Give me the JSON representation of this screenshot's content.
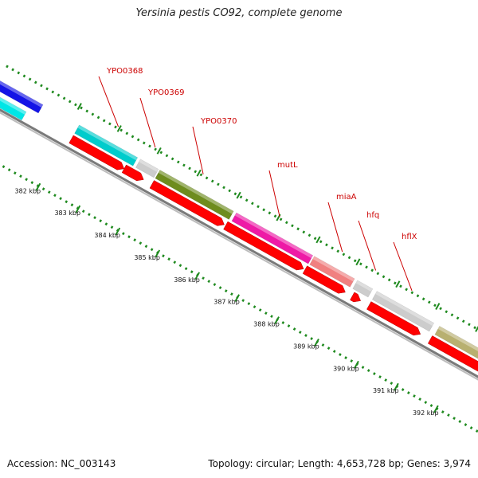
{
  "title": "Yersinia pestis CO92, complete genome",
  "accession_label": "Accession: NC_003143",
  "stats_label": "Topology: circular; Length: 4,653,728 bp; Genes: 3,974",
  "colors": {
    "label_red": "#cc0000",
    "dots_green": "#1f8a1f",
    "backbone": "#7a7a7a",
    "cds": "#ff0000"
  },
  "kbp_ticks": [
    "382 kbp",
    "383 kbp",
    "384 kbp",
    "385 kbp",
    "386 kbp",
    "387 kbp",
    "388 kbp",
    "389 kbp",
    "390 kbp",
    "391 kbp",
    "392 kbp"
  ],
  "gene_labels": [
    "YPO0368",
    "YPO0369",
    "YPO0370",
    "mutL",
    "miaA",
    "hfq",
    "hflX"
  ],
  "feature_colors": [
    "#1414e6",
    "#00e6e6",
    "#00cccc",
    "#cccccc",
    "#6e8c1e",
    "#ee1aa6",
    "#f08080",
    "#cccccc",
    "#cccccc",
    "#b8b070"
  ]
}
